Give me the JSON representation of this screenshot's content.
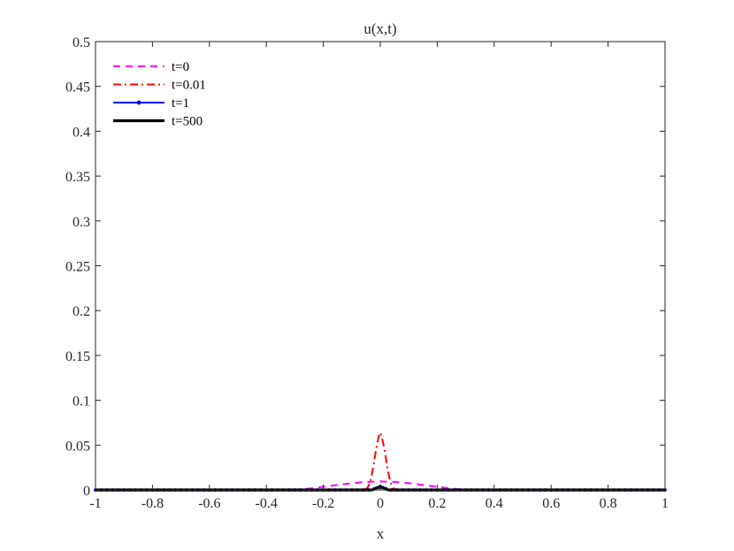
{
  "chart_data": {
    "type": "line",
    "title": "u(x,t)",
    "xlabel": "x",
    "ylabel": "",
    "xlim": [
      -1,
      1
    ],
    "ylim": [
      0,
      0.5
    ],
    "xticks": [
      "-1",
      "-0.8",
      "-0.6",
      "-0.4",
      "-0.2",
      "0",
      "0.2",
      "0.4",
      "0.6",
      "0.8",
      "1"
    ],
    "yticks": [
      "0",
      "0.05",
      "0.1",
      "0.15",
      "0.2",
      "0.25",
      "0.3",
      "0.35",
      "0.4",
      "0.45",
      "0.5"
    ],
    "grid": false,
    "legend_position": "top-left",
    "series": [
      {
        "name": "t=0",
        "color": "#ff00ff",
        "style": "dashed",
        "x": [
          -1,
          -0.4,
          -0.3,
          -0.25,
          -0.2,
          -0.15,
          -0.1,
          -0.05,
          0,
          0.05,
          0.1,
          0.15,
          0.2,
          0.25,
          0.3,
          0.4,
          1
        ],
        "y": [
          0,
          0,
          0.0004,
          0.0015,
          0.0035,
          0.0055,
          0.0075,
          0.009,
          0.0095,
          0.009,
          0.0075,
          0.0055,
          0.0035,
          0.0015,
          0.0004,
          0,
          0
        ]
      },
      {
        "name": "t=0.01",
        "color": "#ff0000",
        "style": "dashdot",
        "x": [
          -1,
          -0.06,
          -0.045,
          -0.035,
          -0.025,
          -0.015,
          -0.005,
          0,
          0.005,
          0.015,
          0.025,
          0.035,
          0.045,
          0.06,
          1
        ],
        "y": [
          0,
          0,
          0.002,
          0.009,
          0.025,
          0.045,
          0.06,
          0.064,
          0.06,
          0.045,
          0.025,
          0.009,
          0.002,
          0,
          0
        ]
      },
      {
        "name": "t=1",
        "color": "#0000ff",
        "style": "solid-dot",
        "x": [
          -1,
          -0.03,
          -0.02,
          -0.01,
          0,
          0.01,
          0.02,
          0.03,
          1
        ],
        "y": [
          0,
          0,
          0.0015,
          0.0035,
          0.004,
          0.0035,
          0.0015,
          0,
          0
        ]
      },
      {
        "name": "t=500",
        "color": "#000000",
        "style": "solid-thick",
        "x": [
          -1,
          -0.03,
          -0.02,
          -0.01,
          0,
          0.01,
          0.02,
          0.03,
          1
        ],
        "y": [
          0,
          0,
          0.001,
          0.0025,
          0.003,
          0.0025,
          0.001,
          0,
          0
        ]
      }
    ]
  }
}
